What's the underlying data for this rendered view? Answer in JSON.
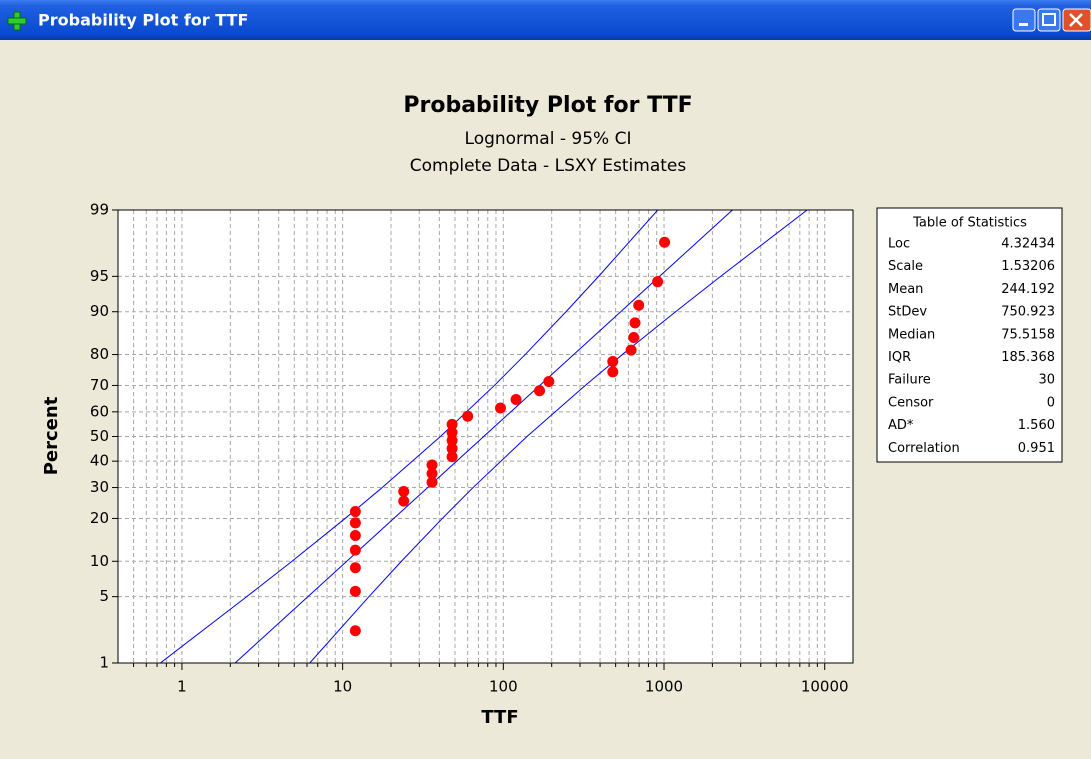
{
  "window": {
    "title": "Probability Plot for TTF"
  },
  "chart_data": {
    "type": "probability",
    "title": "Probability Plot for TTF",
    "subtitle": [
      "Lognormal - 95% CI",
      "Complete Data - LSXY Estimates"
    ],
    "xlabel": "TTF",
    "ylabel": "Percent",
    "xscale": "log",
    "yscale": "normal-probability",
    "grid": true,
    "xlim": [
      0.4,
      15000
    ],
    "xticks": [
      1,
      10,
      100,
      1000,
      10000
    ],
    "xminorticks": [
      0.5,
      0.6,
      0.7,
      0.8,
      0.9,
      2,
      3,
      4,
      5,
      6,
      7,
      8,
      9,
      20,
      30,
      40,
      50,
      60,
      70,
      80,
      90,
      200,
      300,
      400,
      500,
      600,
      700,
      800,
      900,
      2000,
      3000,
      4000,
      5000,
      6000,
      7000,
      8000,
      9000
    ],
    "ylim": [
      1,
      99
    ],
    "yticks": [
      1,
      5,
      10,
      20,
      30,
      40,
      50,
      60,
      70,
      80,
      90,
      95,
      99
    ],
    "points": {
      "color": "#ff0000",
      "x": [
        12,
        12,
        12,
        12,
        12,
        12,
        12,
        24,
        24,
        36,
        36,
        36,
        48,
        48,
        48,
        48,
        48,
        60,
        96,
        120,
        168,
        192,
        480,
        480,
        624,
        648,
        660,
        696,
        912,
        1008
      ],
      "y": [
        2.3,
        5.59,
        8.88,
        12.17,
        15.46,
        18.75,
        22.04,
        25.33,
        28.62,
        31.91,
        35.2,
        38.49,
        41.78,
        45.07,
        48.36,
        51.64,
        54.93,
        58.22,
        61.51,
        64.8,
        68.09,
        71.38,
        74.67,
        77.96,
        81.25,
        84.54,
        87.83,
        91.12,
        94.41,
        97.7
      ]
    },
    "lines": [
      {
        "color": "#0000ff",
        "x": [
          2.14,
          2665
        ],
        "y": [
          1,
          99
        ]
      },
      {
        "color": "#0000ff",
        "x": [
          0.734,
          2.53,
          4.84,
          10.37,
          17.65,
          40.6,
          88.0,
          136.7,
          245.5,
          391.6,
          914
        ],
        "y": [
          1,
          5,
          10,
          20,
          30,
          50,
          70,
          80,
          90,
          95,
          99
        ]
      },
      {
        "color": "#0000ff",
        "x": [
          6.24,
          14.57,
          23.22,
          41.7,
          64.8,
          140.4,
          323.3,
          550,
          1180,
          2250,
          7775
        ],
        "y": [
          1,
          5,
          10,
          20,
          30,
          50,
          70,
          80,
          90,
          95,
          99
        ]
      }
    ],
    "stats_table": {
      "title": "Table of Statistics",
      "rows": [
        [
          "Loc",
          "4.32434"
        ],
        [
          "Scale",
          "1.53206"
        ],
        [
          "Mean",
          "244.192"
        ],
        [
          "StDev",
          "750.923"
        ],
        [
          "Median",
          "75.5158"
        ],
        [
          "IQR",
          "185.368"
        ],
        [
          "Failure",
          "30"
        ],
        [
          "Censor",
          "0"
        ],
        [
          "AD*",
          "1.560"
        ],
        [
          "Correlation",
          "0.951"
        ]
      ]
    }
  }
}
